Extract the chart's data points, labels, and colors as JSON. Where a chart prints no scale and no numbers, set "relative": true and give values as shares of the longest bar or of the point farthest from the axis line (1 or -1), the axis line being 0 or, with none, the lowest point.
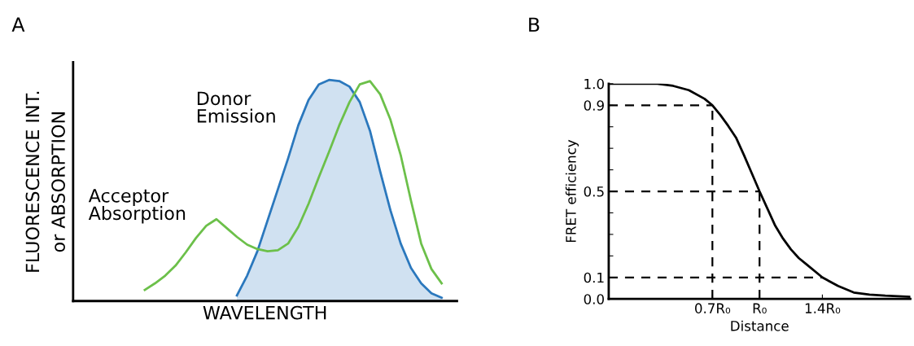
{
  "chart_data": [
    {
      "type": "line",
      "title": "A",
      "xlabel": "WAVELENGTH",
      "ylabel": "FLUORESCENCE INT.\nor ABSORPTION",
      "relative": true,
      "categories": [
        null,
        null,
        null,
        null,
        null,
        null,
        null,
        null,
        null,
        null,
        null,
        null,
        null,
        null,
        null,
        null,
        null,
        null,
        null,
        null,
        null,
        null,
        null,
        null,
        null,
        null,
        null,
        null,
        null,
        null,
        null,
        null,
        null,
        null,
        null,
        null,
        null,
        null
      ],
      "series": [
        {
          "name": "Donor\nEmission",
          "type": "area",
          "color": "#2b78bd",
          "values": [
            null,
            null,
            null,
            null,
            null,
            null,
            null,
            null,
            null,
            null,
            null,
            null,
            null,
            null,
            null,
            null,
            0.025,
            0.115,
            0.225,
            0.365,
            0.505,
            0.645,
            0.795,
            0.91,
            0.98,
            1.0,
            0.995,
            0.97,
            0.9,
            0.77,
            0.585,
            0.41,
            0.26,
            0.15,
            0.08,
            0.035,
            0.015,
            null
          ]
        },
        {
          "name": "Acceptor\nAbsorption",
          "type": "line",
          "color": "#6cc04a",
          "values": [
            null,
            null,
            null,
            null,
            null,
            null,
            null,
            0.05,
            0.08,
            0.115,
            0.16,
            0.22,
            0.285,
            0.34,
            0.37,
            0.33,
            0.29,
            0.255,
            0.235,
            0.225,
            0.23,
            0.26,
            0.335,
            0.44,
            0.56,
            0.675,
            0.795,
            0.9,
            0.98,
            0.995,
            0.935,
            0.82,
            0.66,
            0.455,
            0.26,
            0.145,
            0.08,
            null
          ]
        }
      ]
    },
    {
      "type": "line",
      "title": "B",
      "xlabel": "Distance",
      "ylabel": "FRET efficiency",
      "xlim": [
        0.04,
        1.96
      ],
      "ylim": [
        0,
        1.0
      ],
      "xticks": [
        {
          "value": 0.7,
          "label": "0.7R₀"
        },
        {
          "value": 1.0,
          "label": "R₀"
        },
        {
          "value": 1.4,
          "label": "1.4R₀"
        }
      ],
      "yticks": [
        {
          "value": 0,
          "label": "0.0"
        },
        {
          "value": 0.1,
          "label": "0.1"
        },
        {
          "value": 0.2,
          "label": null
        },
        {
          "value": 0.3,
          "label": null
        },
        {
          "value": 0.4,
          "label": null
        },
        {
          "value": 0.5,
          "label": "0.5"
        },
        {
          "value": 0.6,
          "label": null
        },
        {
          "value": 0.7,
          "label": null
        },
        {
          "value": 0.8,
          "label": null
        },
        {
          "value": 0.9,
          "label": "0.9"
        },
        {
          "value": 1.0,
          "label": "1.0"
        }
      ],
      "series": [
        {
          "color": "#000000",
          "x": [
            0.04,
            0.2,
            0.35,
            0.45,
            0.55,
            0.65,
            0.7,
            0.75,
            0.8,
            0.85,
            0.9,
            0.95,
            1.0,
            1.05,
            1.1,
            1.15,
            1.2,
            1.25,
            1.3,
            1.4,
            1.5,
            1.6,
            1.7,
            1.8,
            1.96
          ],
          "values": [
            1.0,
            1.0,
            1.0,
            0.99,
            0.97,
            0.93,
            0.9,
            0.855,
            0.805,
            0.75,
            0.67,
            0.585,
            0.5,
            0.42,
            0.34,
            0.28,
            0.23,
            0.19,
            0.16,
            0.1,
            0.06,
            0.03,
            0.02,
            0.015,
            0.01
          ]
        }
      ],
      "ref_lines": [
        {
          "axis": "y",
          "value": 0.9,
          "color": "#000000",
          "line_style": "dashed"
        },
        {
          "axis": "y",
          "value": 0.5,
          "color": "#000000",
          "line_style": "dashed"
        },
        {
          "axis": "y",
          "value": 0.1,
          "color": "#000000",
          "line_style": "dashed"
        },
        {
          "axis": "x",
          "value": 0.7,
          "color": "#000000",
          "line_style": "dashed"
        },
        {
          "axis": "x",
          "value": 1.0,
          "color": "#000000",
          "line_style": "dashed"
        }
      ]
    }
  ]
}
